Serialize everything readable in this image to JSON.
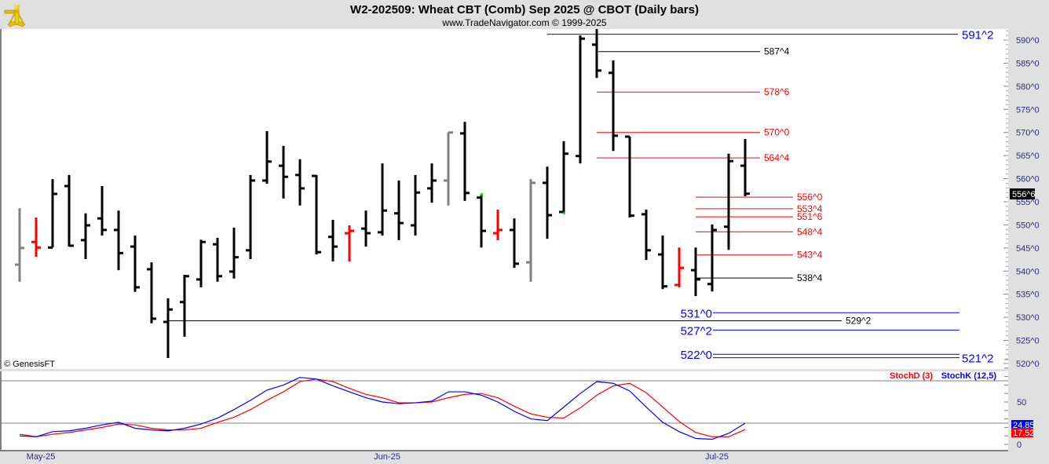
{
  "header": {
    "title": "W2-202509:  Wheat CBT (Comb) Sep 2025 @ CBOT  (Daily bars)",
    "subtitle": "www.TradeNavigator.com © 1999-2025",
    "logo_icon": "sextant-icon"
  },
  "copyright": "© GenesisFT",
  "colors": {
    "bar": "#000000",
    "bar_gray": "#808080",
    "bar_red": "#ff0000",
    "marker_green": "#00e000",
    "level_blue": "#0000ff",
    "level_red": "#ff0000",
    "level_black": "#000000",
    "stoch_k": "#0000ff",
    "stoch_d": "#ff0000",
    "axis_text": "#2b2b80"
  },
  "chart_data": [
    {
      "type": "ohlc",
      "title": "W2-202509:  Wheat CBT (Comb) Sep 2025 @ CBOT  (Daily bars)",
      "ylim": [
        518,
        593
      ],
      "yticks": [
        "590^0",
        "585^0",
        "580^0",
        "575^0",
        "570^0",
        "565^0",
        "560^0",
        "555^0",
        "550^0",
        "545^0",
        "540^0",
        "535^0",
        "530^0",
        "525^0",
        "520^0"
      ],
      "ytick_values": [
        590,
        585,
        580,
        575,
        570,
        565,
        560,
        555,
        550,
        545,
        540,
        535,
        530,
        525,
        520
      ],
      "last_price_label": "556^6",
      "last_price": 556.75,
      "x_labels": [
        {
          "label": "May-25",
          "bar": 1
        },
        {
          "label": "Jun-25",
          "bar": 22
        },
        {
          "label": "Jul-25",
          "bar": 42
        }
      ],
      "bars": [
        {
          "o": 541.4,
          "h": 553.6,
          "l": 537.7,
          "c": 545.0,
          "color": "gray"
        },
        {
          "o": 546.3,
          "h": 551.6,
          "l": 543.1,
          "c": 545.1,
          "color": "red"
        },
        {
          "o": 545.1,
          "h": 559.9,
          "l": 545.1,
          "c": 556.7
        },
        {
          "o": 558.4,
          "h": 560.8,
          "l": 545.3,
          "c": 545.5
        },
        {
          "o": 546.7,
          "h": 552.5,
          "l": 542.6,
          "c": 549.9
        },
        {
          "o": 551.4,
          "h": 558.4,
          "l": 547.7,
          "c": 548.9
        },
        {
          "o": 548.9,
          "h": 553.1,
          "l": 540.2,
          "c": 543.9
        },
        {
          "o": 545.3,
          "h": 547.7,
          "l": 535.5,
          "c": 536.5
        },
        {
          "o": 540.4,
          "h": 541.9,
          "l": 528.7,
          "c": 529.7
        },
        {
          "o": 529.0,
          "h": 534.1,
          "l": 521.2,
          "c": 531.7
        },
        {
          "o": 533.3,
          "h": 539.2,
          "l": 525.8,
          "c": 538.9
        },
        {
          "o": 538.2,
          "h": 546.8,
          "l": 536.5,
          "c": 546.3
        },
        {
          "o": 545.8,
          "h": 547.2,
          "l": 537.7,
          "c": 538.9
        },
        {
          "o": 539.9,
          "h": 549.4,
          "l": 538.4,
          "c": 543.0
        },
        {
          "o": 544.5,
          "h": 560.8,
          "l": 542.6,
          "c": 559.6
        },
        {
          "o": 559.6,
          "h": 570.3,
          "l": 558.9,
          "c": 563.7
        },
        {
          "o": 562.8,
          "h": 567.1,
          "l": 555.7,
          "c": 560.4
        },
        {
          "o": 560.8,
          "h": 564.2,
          "l": 554.2,
          "c": 557.9
        },
        {
          "o": 560.6,
          "h": 560.8,
          "l": 543.6,
          "c": 544.1
        },
        {
          "o": 547.4,
          "h": 551.1,
          "l": 542.1,
          "c": 545.3
        },
        {
          "o": 548.2,
          "h": 549.9,
          "l": 542.1,
          "c": 548.7,
          "color": "red"
        },
        {
          "o": 549.2,
          "h": 553.1,
          "l": 545.3,
          "c": 548.2
        },
        {
          "o": 548.4,
          "h": 563.3,
          "l": 547.7,
          "c": 553.1
        },
        {
          "o": 552.5,
          "h": 559.6,
          "l": 546.7,
          "c": 550.4
        },
        {
          "o": 549.9,
          "h": 560.8,
          "l": 547.7,
          "c": 557.0
        },
        {
          "o": 557.9,
          "h": 563.3,
          "l": 554.8,
          "c": 559.6
        },
        {
          "o": 559.6,
          "h": 570.0,
          "l": 554.2,
          "c": 570.0,
          "color": "gray"
        },
        {
          "o": 569.8,
          "h": 572.3,
          "l": 555.2,
          "c": 556.9
        },
        {
          "o": 555.9,
          "h": 556.5,
          "l": 545.1,
          "c": 548.7,
          "marker": "high"
        },
        {
          "o": 548.2,
          "h": 553.3,
          "l": 546.7,
          "c": 548.9,
          "color": "red"
        },
        {
          "o": 548.9,
          "h": 551.4,
          "l": 540.7,
          "c": 541.6
        },
        {
          "o": 541.9,
          "h": 559.9,
          "l": 537.7,
          "c": 559.1,
          "color": "gray"
        },
        {
          "o": 559.1,
          "h": 562.6,
          "l": 547.0,
          "c": 552.1
        },
        {
          "o": 552.8,
          "h": 568.1,
          "l": 552.5,
          "c": 565.4,
          "marker": "low"
        },
        {
          "o": 564.9,
          "h": 591.0,
          "l": 563.3,
          "c": 590.3
        },
        {
          "o": 589.0,
          "h": 592.4,
          "l": 581.8,
          "c": 583.4
        },
        {
          "o": 582.9,
          "h": 585.6,
          "l": 566.0,
          "c": 569.3
        },
        {
          "o": 569.1,
          "h": 569.1,
          "l": 551.6,
          "c": 552.0
        },
        {
          "o": 552.3,
          "h": 553.3,
          "l": 542.4,
          "c": 544.5
        },
        {
          "o": 543.6,
          "h": 547.7,
          "l": 536.1,
          "c": 536.7
        },
        {
          "o": 537.0,
          "h": 545.1,
          "l": 536.5,
          "c": 540.7,
          "color": "red"
        },
        {
          "o": 540.2,
          "h": 545.1,
          "l": 534.6,
          "c": 538.2
        },
        {
          "o": 537.2,
          "h": 550.1,
          "l": 535.6,
          "c": 548.9
        },
        {
          "o": 549.6,
          "h": 565.4,
          "l": 544.6,
          "c": 563.8
        },
        {
          "o": 562.8,
          "h": 568.6,
          "l": 556.2,
          "c": 556.75
        }
      ],
      "levels": [
        {
          "label": "591^2",
          "price": 591.25,
          "color": "blue"
        },
        {
          "label": "587^4",
          "price": 587.5,
          "color": "black"
        },
        {
          "label": "578^6",
          "price": 578.75,
          "color": "red"
        },
        {
          "label": "570^0",
          "price": 570.0,
          "color": "red"
        },
        {
          "label": "564^4",
          "price": 564.5,
          "color": "red"
        },
        {
          "label": "556^0",
          "price": 556.0,
          "color": "red"
        },
        {
          "label": "553^4",
          "price": 553.5,
          "color": "red"
        },
        {
          "label": "551^6",
          "price": 551.75,
          "color": "red"
        },
        {
          "label": "548^4",
          "price": 548.5,
          "color": "red"
        },
        {
          "label": "543^4",
          "price": 543.5,
          "color": "red"
        },
        {
          "label": "538^4",
          "price": 538.5,
          "color": "black"
        },
        {
          "label": "531^0",
          "price": 531.0,
          "color": "blue"
        },
        {
          "label": "529^2",
          "price": 529.25,
          "color": "black"
        },
        {
          "label": "527^2",
          "price": 527.25,
          "color": "blue"
        },
        {
          "label": "522^0",
          "price": 522.0,
          "color": "blue"
        },
        {
          "label": "521^2",
          "price": 521.25,
          "color": "blue"
        }
      ]
    },
    {
      "type": "line",
      "title": "Stochastic",
      "legend": [
        "StochD (3)",
        "StochK (12,5)"
      ],
      "legend_position": "top-right",
      "ylim": [
        0,
        100
      ],
      "yticks": [
        "50",
        "0"
      ],
      "ytick_values": [
        50,
        0
      ],
      "gridlines": [
        25,
        75
      ],
      "last_k_label": "24.85",
      "last_d_label": "17.52",
      "series": [
        {
          "name": "StochK (12,5)",
          "color": "blue",
          "values": [
            10,
            9,
            15,
            16,
            19,
            23,
            26,
            19,
            17,
            16,
            19,
            24,
            31,
            41,
            52,
            64,
            70,
            79,
            77,
            69,
            62,
            55,
            50,
            48,
            49,
            51,
            62,
            62,
            58,
            50,
            39,
            30,
            28,
            44,
            60,
            74,
            72,
            63,
            44,
            26,
            15,
            7,
            6,
            13,
            24.85
          ]
        },
        {
          "name": "StochD (3)",
          "color": "red",
          "values": [
            12,
            9,
            12,
            14,
            17,
            20,
            24,
            23,
            19,
            17,
            17,
            19,
            26,
            32,
            41,
            52,
            62,
            74,
            77,
            74,
            66,
            59,
            55,
            49,
            49,
            50,
            55,
            59,
            60,
            55,
            45,
            36,
            32,
            31,
            43,
            58,
            69,
            72,
            61,
            44,
            27,
            14,
            9,
            9,
            17.52
          ]
        }
      ]
    }
  ]
}
